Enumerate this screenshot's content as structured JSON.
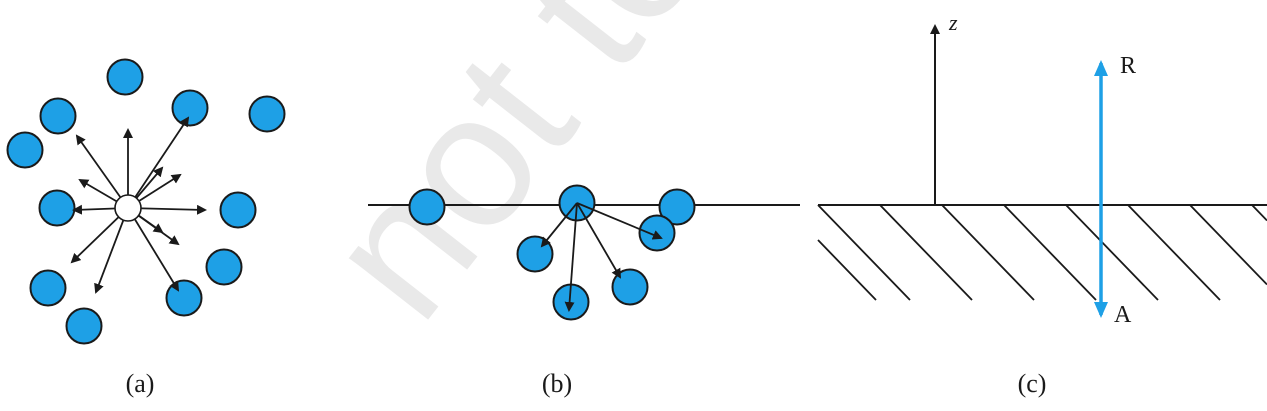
{
  "watermark": {
    "text": "not to be"
  },
  "panels": [
    {
      "id": "a",
      "caption": "(a)"
    },
    {
      "id": "b",
      "caption": "(b)"
    },
    {
      "id": "c",
      "caption": "(c)",
      "axis_label": "z",
      "upper_label": "R",
      "lower_label": "A"
    }
  ],
  "colors": {
    "molecule_fill": "#1ea0e6",
    "outline": "#1a1a1a",
    "vertical_arrow": "#1ea0e6"
  },
  "icons": {
    "molecule": "circle",
    "force": "arrow"
  }
}
